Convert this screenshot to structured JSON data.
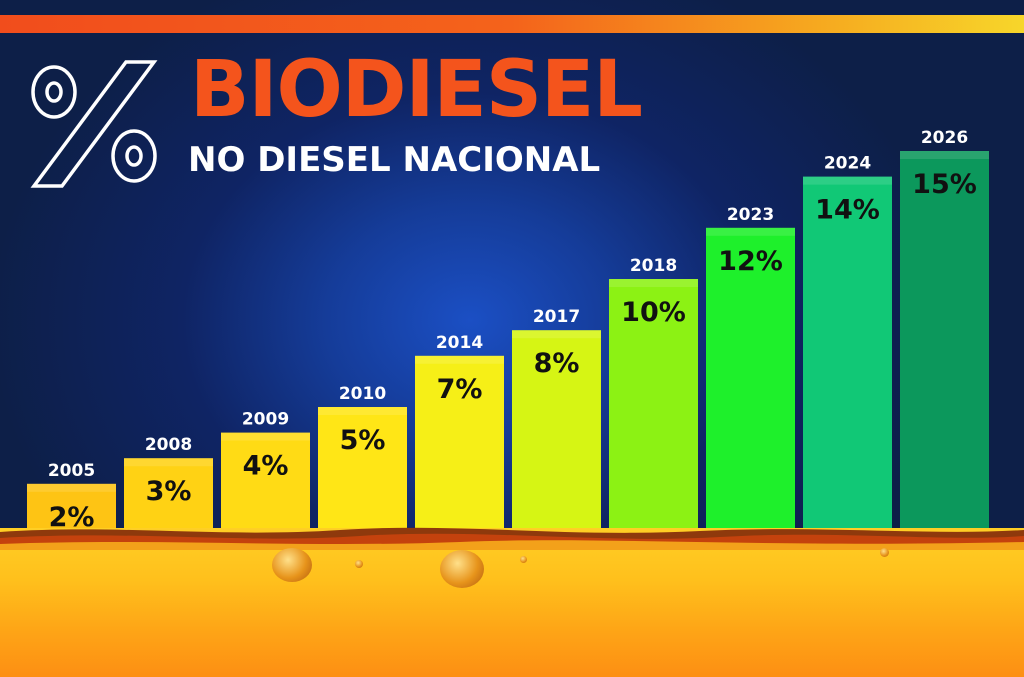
{
  "header": {
    "title": "BIODIESEL",
    "subtitle": "NO DIESEL NACIONAL",
    "icon": "percent-icon"
  },
  "colors": {
    "stripe_start": "#f14d1c",
    "stripe_end": "#f7d62a",
    "title": "#f4541c",
    "background": "#0d1f48"
  },
  "chart_data": {
    "type": "bar",
    "categories": [
      "2005",
      "2008",
      "2009",
      "2010",
      "2014",
      "2017",
      "2018",
      "2023",
      "2024",
      "2026"
    ],
    "values": [
      2,
      3,
      4,
      5,
      7,
      8,
      10,
      12,
      14,
      15
    ],
    "data_labels": [
      "2%",
      "3%",
      "4%",
      "5%",
      "7%",
      "8%",
      "10%",
      "12%",
      "14%",
      "15%"
    ],
    "bar_colors": [
      "#fec414",
      "#ffd214",
      "#ffdb15",
      "#ffe616",
      "#f6ef17",
      "#d6f514",
      "#8cf214",
      "#1ef02b",
      "#11c876",
      "#0c985c"
    ],
    "ylim": [
      0,
      15
    ],
    "grid": false,
    "legend": "none"
  }
}
